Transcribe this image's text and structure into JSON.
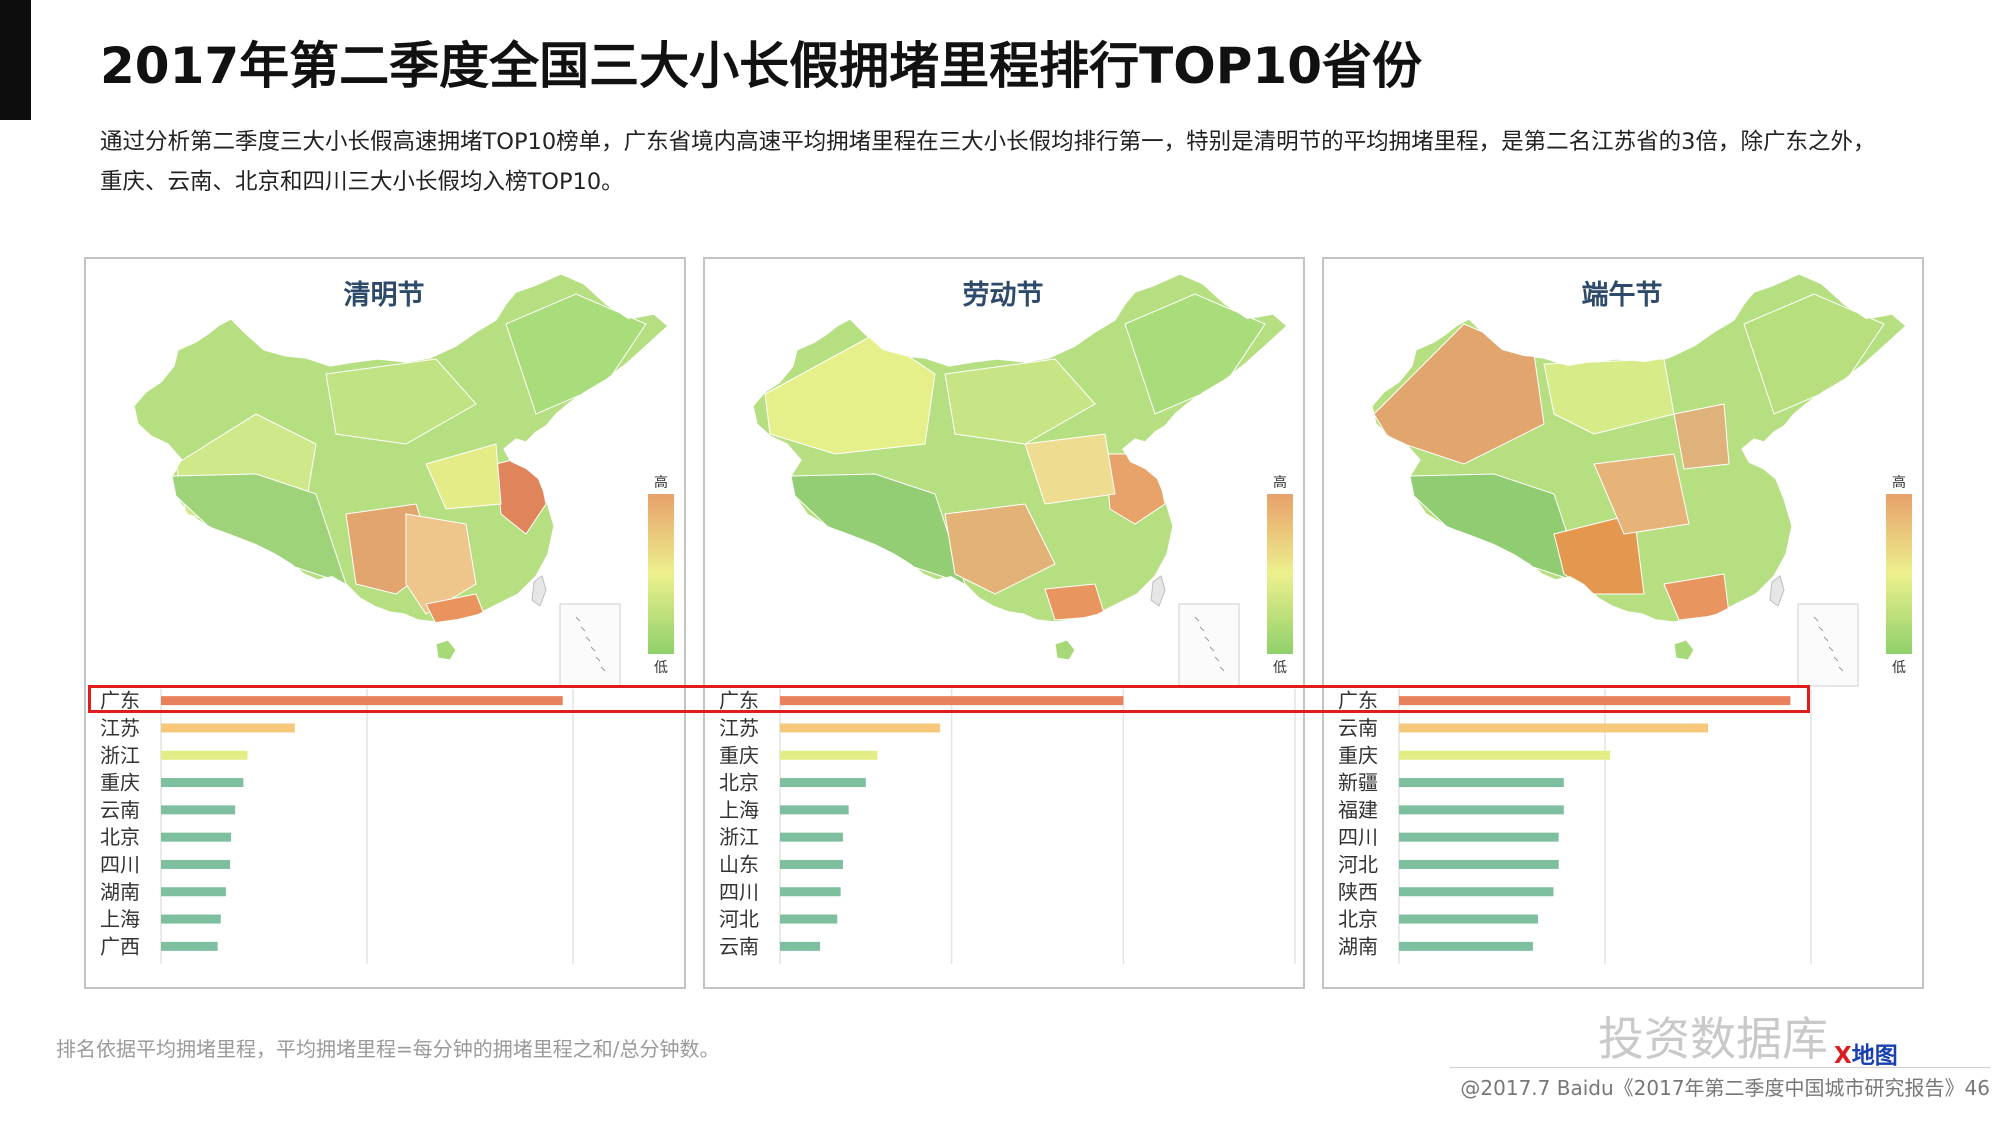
{
  "page": {
    "title": "2017年第二季度全国三大小长假拥堵里程排行TOP10省份",
    "description_line1": "通过分析第二季度三大小长假高速拥堵TOP10榜单，广东省境内高速平均拥堵里程在三大小长假均排行第一，特别是清明节的平均拥堵里程，是第二名江苏省的3倍，除广东之外，",
    "description_line2": "重庆、云南、北京和四川三大小长假均入榜TOP10。",
    "footnote": "排名依据平均拥堵里程，平均拥堵里程=每分钟的拥堵里程之和/总分钟数。",
    "watermark": "投资数据库",
    "watermark_logo_a": "X",
    "watermark_logo_b": "地图",
    "footer": "@2017.7 Baidu《2017年第二季度中国城市研究报告》46"
  },
  "colors": {
    "bar_top": "#e8805c",
    "bar_second": "#f6c97a",
    "bar_third": "#e3ed86",
    "bar_rest": "#7dbf9f",
    "highlight": "#e01c1c",
    "legend_high": "#e8a06a",
    "legend_mid": "#ecf08d",
    "legend_low": "#90d06a"
  },
  "legend": {
    "high": "高",
    "low": "低"
  },
  "chart_data": [
    {
      "type": "bar",
      "orientation": "horizontal",
      "title": "清明节",
      "categories": [
        "广东",
        "江苏",
        "浙江",
        "重庆",
        "云南",
        "北京",
        "四川",
        "湖南",
        "上海",
        "广西"
      ],
      "values": [
        3.9,
        1.3,
        0.84,
        0.8,
        0.72,
        0.68,
        0.67,
        0.63,
        0.58,
        0.55
      ],
      "xlim": [
        0,
        5
      ],
      "grid": true
    },
    {
      "type": "bar",
      "orientation": "horizontal",
      "title": "劳动节",
      "categories": [
        "广东",
        "江苏",
        "重庆",
        "北京",
        "上海",
        "浙江",
        "山东",
        "四川",
        "河北",
        "云南"
      ],
      "values": [
        3.0,
        1.4,
        0.85,
        0.75,
        0.6,
        0.55,
        0.55,
        0.53,
        0.5,
        0.35
      ],
      "xlim": [
        0,
        4.5
      ],
      "grid": true
    },
    {
      "type": "bar",
      "orientation": "horizontal",
      "title": "端午节",
      "categories": [
        "广东",
        "云南",
        "重庆",
        "新疆",
        "福建",
        "四川",
        "河北",
        "陕西",
        "北京",
        "湖南"
      ],
      "values": [
        3.8,
        3.0,
        2.05,
        1.6,
        1.6,
        1.55,
        1.55,
        1.5,
        1.35,
        1.3
      ],
      "xlim": [
        0,
        5
      ],
      "grid": true
    }
  ]
}
